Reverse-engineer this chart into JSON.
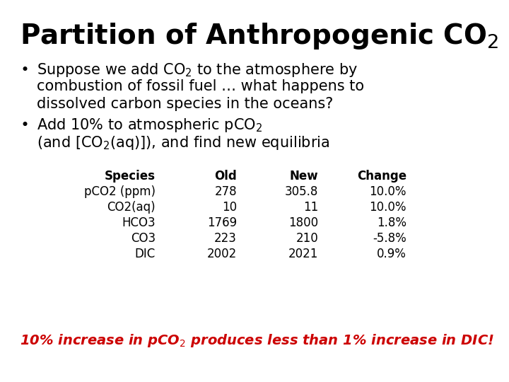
{
  "bg_color": "#ffffff",
  "title": "Partition of Anthropogenic CO$_2$",
  "bullet1_l1": "Suppose we add CO$_2$ to the atmosphere by",
  "bullet1_l2": "combustion of fossil fuel … what happens to",
  "bullet1_l3": "dissolved carbon species in the oceans?",
  "bullet2_l1": "Add 10% to atmospheric pCO$_2$",
  "bullet2_l2": "(and [CO$_2$(aq)]), and find new equilibria",
  "table_headers": [
    "Species",
    "Old",
    "New",
    "Change"
  ],
  "table_rows": [
    [
      "pCO2 (ppm)",
      "278",
      "305.8",
      "10.0%"
    ],
    [
      "CO2(aq)",
      "10",
      "11",
      "10.0%"
    ],
    [
      "HCO3",
      "1769",
      "1800",
      "1.8%"
    ],
    [
      "CO3",
      "223",
      "210",
      "-5.8%"
    ],
    [
      "DIC",
      "2002",
      "2021",
      "0.9%"
    ]
  ],
  "footer": "10% increase in pCO$_2$ produces less than 1% increase in DIC!",
  "footer_color": "#cc0000",
  "title_fontsize": 28,
  "body_fontsize": 15,
  "table_fontsize": 12,
  "footer_fontsize": 14
}
